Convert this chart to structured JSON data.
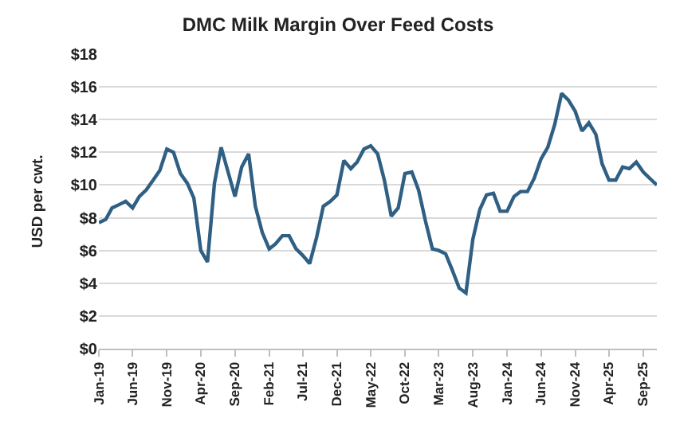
{
  "chart_data": {
    "type": "line",
    "title": "DMC Milk Margin Over Feed Costs",
    "ylabel": "USD per cwt.",
    "x": [
      "2019-01",
      "2019-02",
      "2019-03",
      "2019-04",
      "2019-05",
      "2019-06",
      "2019-07",
      "2019-08",
      "2019-09",
      "2019-10",
      "2019-11",
      "2019-12",
      "2020-01",
      "2020-02",
      "2020-03",
      "2020-04",
      "2020-05",
      "2020-06",
      "2020-07",
      "2020-08",
      "2020-09",
      "2020-10",
      "2020-11",
      "2020-12",
      "2021-01",
      "2021-02",
      "2021-03",
      "2021-04",
      "2021-05",
      "2021-06",
      "2021-07",
      "2021-08",
      "2021-09",
      "2021-10",
      "2021-11",
      "2021-12",
      "2022-01",
      "2022-02",
      "2022-03",
      "2022-04",
      "2022-05",
      "2022-06",
      "2022-07",
      "2022-08",
      "2022-09",
      "2022-10",
      "2022-11",
      "2022-12",
      "2023-01",
      "2023-02",
      "2023-03",
      "2023-04",
      "2023-05",
      "2023-06",
      "2023-07",
      "2023-08",
      "2023-09",
      "2023-10",
      "2023-11",
      "2023-12",
      "2024-01",
      "2024-02",
      "2024-03",
      "2024-04",
      "2024-05",
      "2024-06",
      "2024-07",
      "2024-08",
      "2024-09",
      "2024-10",
      "2024-11",
      "2024-12",
      "2025-01",
      "2025-02",
      "2025-03",
      "2025-04",
      "2025-05",
      "2025-06",
      "2025-07",
      "2025-08",
      "2025-09",
      "2025-10",
      "2025-11"
    ],
    "series": [
      {
        "color": "#2f5f83",
        "values": [
          7.7,
          7.9,
          8.6,
          8.8,
          9.0,
          8.6,
          9.3,
          9.7,
          10.3,
          10.9,
          12.2,
          12.0,
          10.7,
          10.1,
          9.2,
          6.0,
          5.3,
          10.1,
          12.3,
          10.8,
          9.3,
          11.1,
          11.9,
          8.7,
          7.1,
          6.1,
          6.4,
          6.9,
          6.9,
          6.1,
          5.7,
          5.2,
          6.8,
          8.7,
          9.0,
          9.4,
          11.5,
          11.0,
          11.4,
          12.2,
          12.4,
          11.9,
          10.3,
          8.1,
          8.6,
          10.7,
          10.8,
          9.7,
          7.8,
          6.1,
          6.0,
          5.8,
          4.8,
          3.7,
          3.4,
          6.7,
          8.5,
          9.4,
          9.5,
          8.4,
          8.4,
          9.3,
          9.6,
          9.6,
          10.4,
          11.6,
          12.3,
          13.7,
          15.6,
          15.2,
          14.5,
          13.3,
          13.8,
          13.1,
          11.3,
          10.3,
          10.3,
          11.1,
          11.0,
          11.4,
          10.8,
          10.4,
          10.0
        ]
      }
    ],
    "xlim": [
      "2019-01",
      "2025-11"
    ],
    "xticks": [
      {
        "value": "2019-01",
        "label": "Jan-19"
      },
      {
        "value": "2019-06",
        "label": "Jun-19"
      },
      {
        "value": "2019-11",
        "label": "Nov-19"
      },
      {
        "value": "2020-04",
        "label": "Apr-20"
      },
      {
        "value": "2020-09",
        "label": "Sep-20"
      },
      {
        "value": "2021-02",
        "label": "Feb-21"
      },
      {
        "value": "2021-07",
        "label": "Jul-21"
      },
      {
        "value": "2021-12",
        "label": "Dec-21"
      },
      {
        "value": "2022-05",
        "label": "May-22"
      },
      {
        "value": "2022-10",
        "label": "Oct-22"
      },
      {
        "value": "2023-03",
        "label": "Mar-23"
      },
      {
        "value": "2023-08",
        "label": "Aug-23"
      },
      {
        "value": "2024-01",
        "label": "Jan-24"
      },
      {
        "value": "2024-06",
        "label": "Jun-24"
      },
      {
        "value": "2024-11",
        "label": "Nov-24"
      },
      {
        "value": "2025-04",
        "label": "Apr-25"
      },
      {
        "value": "2025-09",
        "label": "Sep-25"
      }
    ],
    "ylim": [
      0,
      18
    ],
    "yticks": [
      {
        "value": 0,
        "label": "$0"
      },
      {
        "value": 2,
        "label": "$2"
      },
      {
        "value": 4,
        "label": "$4"
      },
      {
        "value": 6,
        "label": "$6"
      },
      {
        "value": 8,
        "label": "$8"
      },
      {
        "value": 10,
        "label": "$10"
      },
      {
        "value": 12,
        "label": "$12"
      },
      {
        "value": 14,
        "label": "$14"
      },
      {
        "value": 16,
        "label": "$16"
      },
      {
        "value": 18,
        "label": "$18"
      }
    ],
    "grid": "y",
    "line_style": "solid"
  }
}
